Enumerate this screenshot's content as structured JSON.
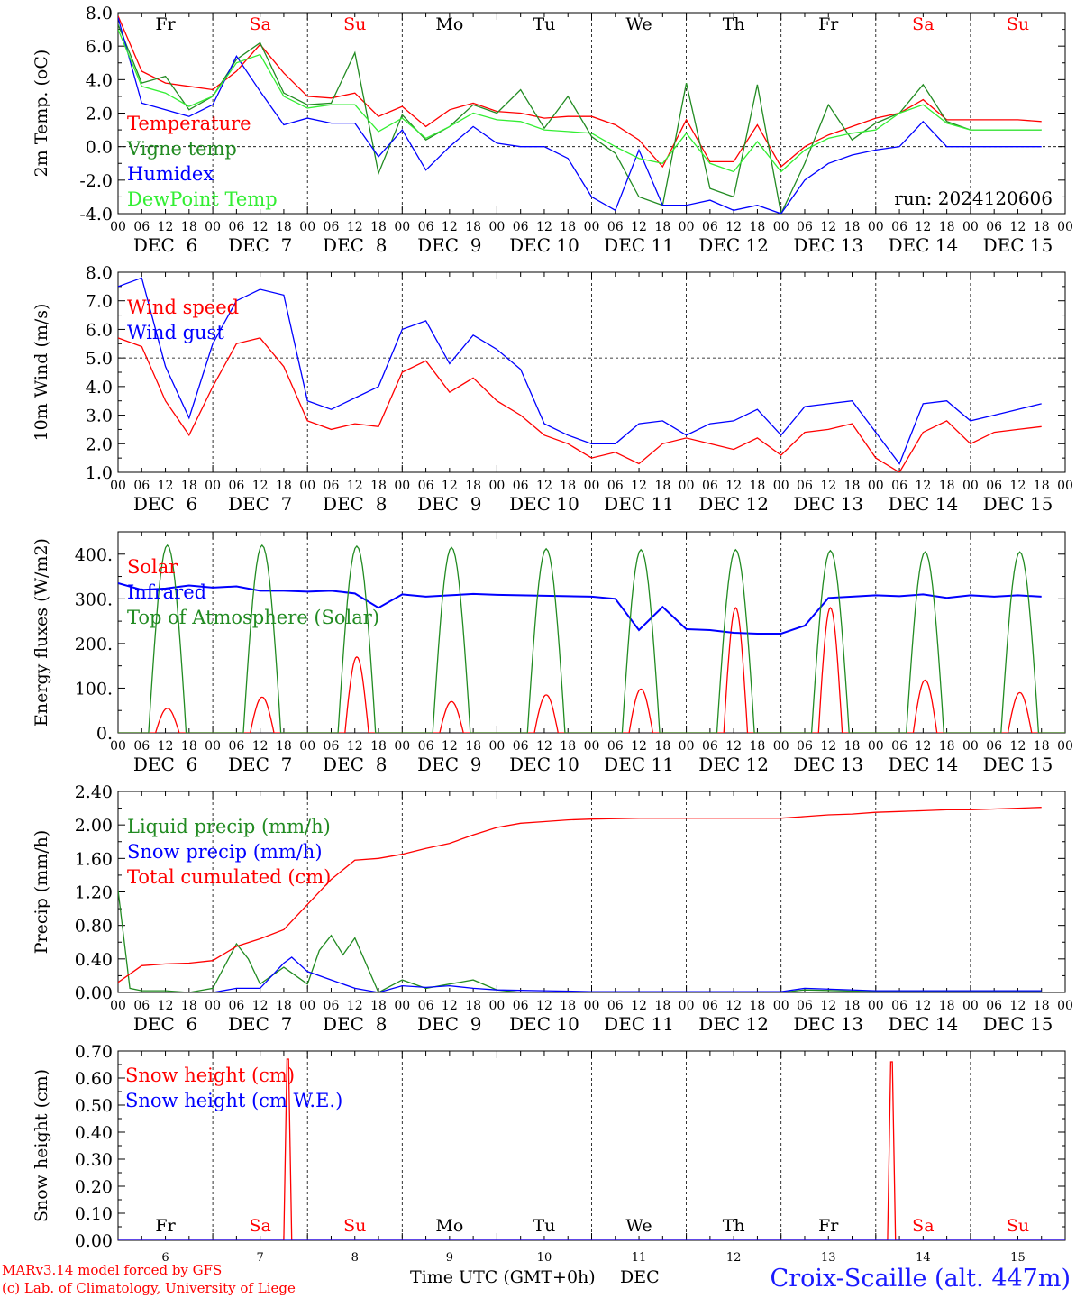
{
  "footer": {
    "model": "MARv3.14 model forced by GFS",
    "credit": "(c) Lab. of Climatology, University of Liege",
    "xaxis_title": "Time UTC (GMT+0h)",
    "month": "DEC",
    "station": "Croix-Scaille (alt. 447m)"
  },
  "days": {
    "weekday_labels": [
      "Fr",
      "Sa",
      "Su",
      "Mo",
      "Tu",
      "We",
      "Th",
      "Fr",
      "Sa",
      "Su"
    ],
    "weekend_flags": [
      false,
      true,
      true,
      false,
      false,
      false,
      false,
      false,
      true,
      true
    ],
    "date_labels": [
      "DEC  6",
      "DEC  7",
      "DEC  8",
      "DEC  9",
      "DEC 10",
      "DEC 11",
      "DEC 12",
      "DEC 13",
      "DEC 14",
      "DEC 15"
    ],
    "day_numbers": [
      "6",
      "7",
      "8",
      "9",
      "10",
      "11",
      "12",
      "13",
      "14",
      "15"
    ],
    "hour_ticks": [
      "00",
      "06",
      "12",
      "18"
    ],
    "last_tick": "00"
  },
  "colors": {
    "red": "#ff0000",
    "green": "#228b22",
    "blue": "#0000ff",
    "lightgreen": "#33ee33",
    "footer_blue": "#1a1aff"
  },
  "chart_data": [
    {
      "type": "line",
      "ylabel": "2m Temp. (oC)",
      "ylim": [
        -4.0,
        8.0
      ],
      "yticks": [
        "-4.0",
        "-2.0",
        "0.0",
        "2.0",
        "4.0",
        "6.0",
        "8.0"
      ],
      "refline": 0.0,
      "annotation": "run: 2024120606",
      "x_unit": "hours from DEC 6 00 UTC",
      "series": [
        {
          "name": "Temperature",
          "color": "red",
          "x": [
            0,
            6,
            12,
            18,
            24,
            30,
            36,
            42,
            48,
            54,
            60,
            66,
            72,
            78,
            84,
            90,
            96,
            102,
            108,
            114,
            120,
            126,
            132,
            138,
            144,
            150,
            156,
            162,
            168,
            174,
            180,
            186,
            192,
            198,
            204,
            210,
            216,
            222,
            228,
            234
          ],
          "values": [
            7.8,
            4.5,
            3.8,
            3.6,
            3.4,
            4.5,
            6.1,
            4.4,
            3.0,
            2.9,
            3.2,
            1.8,
            2.4,
            1.2,
            2.2,
            2.6,
            2.1,
            2.0,
            1.7,
            1.8,
            1.8,
            1.3,
            0.4,
            -1.2,
            1.6,
            -0.9,
            -0.9,
            1.3,
            -1.2,
            0.0,
            0.7,
            1.2,
            1.7,
            2.0,
            2.8,
            1.6,
            1.6,
            1.6,
            1.6,
            1.5
          ]
        },
        {
          "name": "Vigne temp",
          "color": "green",
          "x": [
            0,
            6,
            12,
            18,
            24,
            30,
            36,
            42,
            48,
            54,
            60,
            66,
            72,
            78,
            84,
            90,
            96,
            102,
            108,
            114,
            120,
            126,
            132,
            138,
            144,
            150,
            156,
            162,
            168,
            174,
            180,
            186,
            192,
            198,
            204,
            210,
            216,
            222,
            228,
            234
          ],
          "values": [
            7.3,
            3.8,
            4.2,
            2.2,
            3.0,
            5.2,
            6.2,
            3.2,
            2.5,
            2.6,
            5.6,
            -1.6,
            1.9,
            0.4,
            1.2,
            2.5,
            2.0,
            3.4,
            1.1,
            3.0,
            0.6,
            -0.4,
            -3.0,
            -3.5,
            3.8,
            -2.5,
            -3.0,
            3.7,
            -4.0,
            -1.0,
            2.5,
            0.4,
            1.4,
            2.0,
            3.7,
            1.5,
            1.0,
            1.0,
            1.0,
            1.0
          ]
        },
        {
          "name": "Humidex",
          "color": "blue",
          "x": [
            0,
            6,
            12,
            18,
            24,
            30,
            36,
            42,
            48,
            54,
            60,
            66,
            72,
            78,
            84,
            90,
            96,
            102,
            108,
            114,
            120,
            126,
            132,
            138,
            144,
            150,
            156,
            162,
            168,
            174,
            180,
            186,
            192,
            198,
            204,
            210,
            216,
            222,
            228,
            234
          ],
          "values": [
            7.7,
            2.6,
            2.2,
            1.8,
            2.5,
            5.4,
            3.3,
            1.3,
            1.7,
            1.4,
            1.4,
            -0.6,
            1.0,
            -1.4,
            0.0,
            1.2,
            0.2,
            0.0,
            0.0,
            -0.7,
            -3.0,
            -3.8,
            -0.2,
            -3.5,
            -3.5,
            -3.2,
            -3.8,
            -3.5,
            -4.0,
            -2.0,
            -1.0,
            -0.5,
            -0.2,
            0.0,
            1.5,
            0.0,
            0.0,
            0.0,
            0.0,
            0.0
          ]
        },
        {
          "name": "DewPoint Temp",
          "color": "lightgreen",
          "x": [
            0,
            6,
            12,
            18,
            24,
            30,
            36,
            42,
            48,
            54,
            60,
            66,
            72,
            78,
            84,
            90,
            96,
            102,
            108,
            114,
            120,
            126,
            132,
            138,
            144,
            150,
            156,
            162,
            168,
            174,
            180,
            186,
            192,
            198,
            204,
            210,
            216,
            222,
            228,
            234
          ],
          "values": [
            7.0,
            3.6,
            3.2,
            2.4,
            3.0,
            5.0,
            5.5,
            3.0,
            2.3,
            2.5,
            2.5,
            0.9,
            1.7,
            0.5,
            1.2,
            2.0,
            1.6,
            1.5,
            1.0,
            0.9,
            0.8,
            0.0,
            -0.7,
            -1.0,
            0.8,
            -1.0,
            -1.5,
            0.3,
            -1.5,
            -0.2,
            0.5,
            0.8,
            1.0,
            2.0,
            2.5,
            1.4,
            1.0,
            1.0,
            1.0,
            1.0
          ]
        }
      ]
    },
    {
      "type": "line",
      "ylabel": "10m Wind (m/s)",
      "ylim": [
        1.0,
        8.0
      ],
      "yticks": [
        "1.0",
        "2.0",
        "3.0",
        "4.0",
        "5.0",
        "6.0",
        "7.0",
        "8.0"
      ],
      "refline": 5.0,
      "series": [
        {
          "name": "Wind speed",
          "color": "red",
          "x": [
            0,
            6,
            12,
            18,
            24,
            30,
            36,
            42,
            48,
            54,
            60,
            66,
            72,
            78,
            84,
            90,
            96,
            102,
            108,
            114,
            120,
            126,
            132,
            138,
            144,
            150,
            156,
            162,
            168,
            174,
            180,
            186,
            192,
            198,
            204,
            210,
            216,
            222,
            228,
            234
          ],
          "values": [
            5.7,
            5.4,
            3.5,
            2.3,
            4.0,
            5.5,
            5.7,
            4.7,
            2.8,
            2.5,
            2.7,
            2.6,
            4.5,
            4.9,
            3.8,
            4.3,
            3.5,
            3.0,
            2.3,
            2.0,
            1.5,
            1.7,
            1.3,
            2.0,
            2.2,
            2.0,
            1.8,
            2.2,
            1.6,
            2.4,
            2.5,
            2.7,
            1.5,
            1.0,
            2.4,
            2.8,
            2.0,
            2.4,
            2.5,
            2.6
          ]
        },
        {
          "name": "Wind gust",
          "color": "blue",
          "x": [
            0,
            6,
            12,
            18,
            24,
            30,
            36,
            42,
            48,
            54,
            60,
            66,
            72,
            78,
            84,
            90,
            96,
            102,
            108,
            114,
            120,
            126,
            132,
            138,
            144,
            150,
            156,
            162,
            168,
            174,
            180,
            186,
            192,
            198,
            204,
            210,
            216,
            222,
            228,
            234
          ],
          "values": [
            7.5,
            7.8,
            4.7,
            2.9,
            5.5,
            7.0,
            7.4,
            7.2,
            3.5,
            3.2,
            3.6,
            4.0,
            6.0,
            6.3,
            4.8,
            5.8,
            5.3,
            4.6,
            2.7,
            2.3,
            2.0,
            2.0,
            2.7,
            2.8,
            2.3,
            2.7,
            2.8,
            3.2,
            2.3,
            3.3,
            3.4,
            3.5,
            2.4,
            1.3,
            3.4,
            3.5,
            2.8,
            3.0,
            3.2,
            3.4
          ]
        }
      ]
    },
    {
      "type": "line",
      "ylabel": "Energy fluxes (W/m2)",
      "ylim": [
        0,
        450
      ],
      "yticks": [
        "0.",
        "100.",
        "200.",
        "300.",
        "400."
      ],
      "series": [
        {
          "name": "Solar",
          "color": "red",
          "peaks": [
            55,
            80,
            170,
            70,
            85,
            98,
            280,
            280,
            118,
            90
          ]
        },
        {
          "name": "Infrared",
          "color": "blue",
          "x": [
            0,
            6,
            12,
            18,
            24,
            30,
            36,
            42,
            48,
            54,
            60,
            66,
            72,
            78,
            84,
            90,
            96,
            102,
            108,
            114,
            120,
            126,
            132,
            138,
            144,
            150,
            156,
            162,
            168,
            174,
            180,
            186,
            192,
            198,
            204,
            210,
            216,
            222,
            228,
            234
          ],
          "values": [
            335,
            320,
            323,
            330,
            325,
            328,
            318,
            318,
            316,
            318,
            312,
            280,
            310,
            305,
            308,
            311,
            309,
            308,
            307,
            306,
            305,
            300,
            230,
            282,
            232,
            230,
            224,
            222,
            222,
            240,
            302,
            305,
            308,
            306,
            310,
            302,
            308,
            305,
            308,
            305
          ]
        },
        {
          "name": "Top of Atmosphere (Solar)",
          "color": "green",
          "peaks": [
            420,
            420,
            418,
            415,
            412,
            410,
            410,
            408,
            405,
            405
          ]
        }
      ]
    },
    {
      "type": "line",
      "ylabel": "Precip (mm/h)",
      "ylim": [
        0.0,
        2.4
      ],
      "yticks": [
        "0.00",
        "0.40",
        "0.80",
        "1.20",
        "1.60",
        "2.00",
        "2.40"
      ],
      "series": [
        {
          "name": "Liquid precip (mm/h)",
          "color": "green",
          "x": [
            0,
            3,
            6,
            12,
            18,
            24,
            30,
            33,
            36,
            42,
            48,
            51,
            54,
            57,
            60,
            66,
            72,
            78,
            84,
            90,
            96,
            102,
            108,
            120,
            144,
            168,
            174,
            192,
            216,
            234
          ],
          "values": [
            1.22,
            0.05,
            0.02,
            0.02,
            0.0,
            0.05,
            0.58,
            0.4,
            0.1,
            0.3,
            0.1,
            0.5,
            0.68,
            0.45,
            0.65,
            0.0,
            0.15,
            0.05,
            0.1,
            0.15,
            0.03,
            0.0,
            0.0,
            0.0,
            0.0,
            0.0,
            0.03,
            0.01,
            0.01,
            0.01
          ]
        },
        {
          "name": "Snow precip (mm/h)",
          "color": "blue",
          "x": [
            0,
            12,
            24,
            30,
            36,
            42,
            44,
            48,
            54,
            60,
            66,
            72,
            78,
            84,
            90,
            96,
            108,
            120,
            144,
            168,
            174,
            192,
            216,
            234
          ],
          "values": [
            0.0,
            0.0,
            0.0,
            0.05,
            0.05,
            0.35,
            0.42,
            0.25,
            0.15,
            0.05,
            0.0,
            0.08,
            0.06,
            0.08,
            0.05,
            0.03,
            0.02,
            0.01,
            0.01,
            0.01,
            0.05,
            0.02,
            0.02,
            0.02
          ]
        },
        {
          "name": "Total cumulated (cm)",
          "color": "red",
          "x": [
            0,
            6,
            12,
            18,
            24,
            30,
            36,
            42,
            48,
            54,
            60,
            66,
            72,
            78,
            84,
            90,
            96,
            102,
            108,
            114,
            120,
            132,
            144,
            156,
            162,
            168,
            174,
            180,
            186,
            192,
            198,
            204,
            210,
            216,
            222,
            228,
            234
          ],
          "values": [
            0.12,
            0.32,
            0.34,
            0.35,
            0.38,
            0.55,
            0.64,
            0.75,
            1.05,
            1.35,
            1.58,
            1.6,
            1.65,
            1.72,
            1.78,
            1.88,
            1.97,
            2.02,
            2.04,
            2.06,
            2.07,
            2.08,
            2.08,
            2.08,
            2.08,
            2.08,
            2.1,
            2.12,
            2.13,
            2.15,
            2.16,
            2.17,
            2.18,
            2.18,
            2.19,
            2.2,
            2.21
          ]
        }
      ]
    },
    {
      "type": "line",
      "ylabel": "Snow height (cm)",
      "ylim": [
        0.0,
        0.7
      ],
      "yticks": [
        "0.00",
        "0.10",
        "0.20",
        "0.30",
        "0.40",
        "0.50",
        "0.60",
        "0.70"
      ],
      "series": [
        {
          "name": "Snow height (cm)",
          "color": "red",
          "x": [
            0,
            42,
            42.8,
            43.2,
            44,
            195,
            195.8,
            196.2,
            197,
            240
          ],
          "values": [
            0.0,
            0.0,
            0.67,
            0.67,
            0.0,
            0.0,
            0.66,
            0.66,
            0.0,
            0.0
          ]
        },
        {
          "name": "Snow height (cm W.E.)",
          "color": "blue",
          "x": [
            0,
            240
          ],
          "values": [
            0.0,
            0.0
          ]
        }
      ]
    }
  ]
}
